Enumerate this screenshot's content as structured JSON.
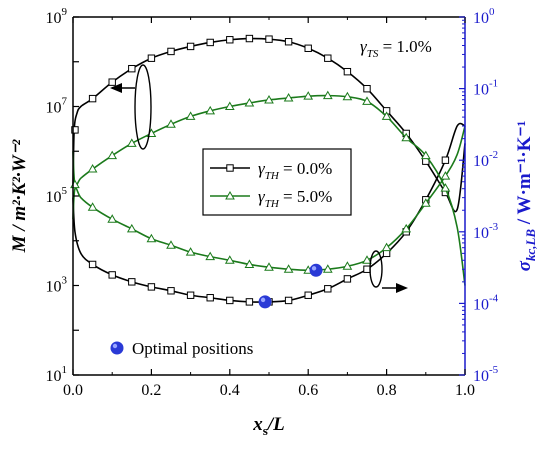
{
  "chart_data": {
    "type": "line",
    "x_axis": {
      "label_main": "x",
      "label_sub": "s",
      "label_rest": "/L",
      "range": [
        0.0,
        1.0
      ],
      "ticks": [
        0.0,
        0.2,
        0.4,
        0.6,
        0.8,
        1.0
      ],
      "tick_labels": [
        "0.0",
        "0.2",
        "0.4",
        "0.6",
        "0.8",
        "1.0"
      ]
    },
    "y_left": {
      "label": "M / m²·K²·W⁻²",
      "scale": "log",
      "range": [
        10,
        1000000000
      ],
      "tick_labels": [
        {
          "base": "10",
          "exp": "1",
          "value": 10
        },
        {
          "base": "10",
          "exp": "3",
          "value": 1000
        },
        {
          "base": "10",
          "exp": "5",
          "value": 100000
        },
        {
          "base": "10",
          "exp": "7",
          "value": 10000000
        },
        {
          "base": "10",
          "exp": "9",
          "value": 1000000000
        }
      ]
    },
    "y_right": {
      "label_main": "σ",
      "label_sub": "kc,LB",
      "label_rest": " / W·m⁻¹·K⁻¹",
      "color": "#1a1acc",
      "scale": "log",
      "range": [
        1e-05,
        1
      ],
      "tick_labels": [
        {
          "base": "10",
          "exp": "-5",
          "value": 1e-05
        },
        {
          "base": "10",
          "exp": "-4",
          "value": 0.0001
        },
        {
          "base": "10",
          "exp": "-3",
          "value": 0.001
        },
        {
          "base": "10",
          "exp": "-2",
          "value": 0.01
        },
        {
          "base": "10",
          "exp": "-1",
          "value": 0.1
        },
        {
          "base": "10",
          "exp": "0",
          "value": 1
        }
      ]
    },
    "annotation_gamma_ts": {
      "symbol": "γ",
      "sub": "TS",
      "text": " = 1.0%"
    },
    "series": [
      {
        "name_symbol": "γ",
        "name_sub": "TH",
        "name_text": " = 0.0%",
        "color": "#000000",
        "marker": "square",
        "M": {
          "x": [
            0.0,
            0.003,
            0.01,
            0.02,
            0.05,
            0.1,
            0.15,
            0.2,
            0.25,
            0.3,
            0.35,
            0.4,
            0.45,
            0.5,
            0.55,
            0.6,
            0.65,
            0.7,
            0.75,
            0.8,
            0.85,
            0.9,
            0.95,
            0.98,
            1.0
          ],
          "y": [
            150000,
            3000000,
            7000000,
            10000000,
            15000000,
            35000000,
            70000000,
            120000000,
            170000000,
            220000000,
            270000000,
            310000000,
            330000000,
            320000000,
            280000000,
            200000000,
            120000000,
            60000000,
            25000000,
            8000000,
            2500000,
            600000,
            120000,
            50000,
            1500000
          ]
        },
        "sigma": {
          "x": [
            0.0,
            0.005,
            0.02,
            0.05,
            0.1,
            0.15,
            0.2,
            0.25,
            0.3,
            0.35,
            0.4,
            0.45,
            0.5,
            0.55,
            0.6,
            0.65,
            0.7,
            0.75,
            0.8,
            0.85,
            0.9,
            0.95,
            0.98,
            1.0
          ],
          "y": [
            0.003,
            0.001,
            0.0005,
            0.00035,
            0.00025,
            0.0002,
            0.00017,
            0.00015,
            0.00013,
            0.00012,
            0.00011,
            0.000105,
            0.000105,
            0.00011,
            0.00013,
            0.00016,
            0.00022,
            0.0003,
            0.0005,
            0.001,
            0.0028,
            0.01,
            0.03,
            0.03
          ]
        }
      },
      {
        "name_symbol": "γ",
        "name_sub": "TH",
        "name_text": " = 5.0%",
        "color": "#1b7a1b",
        "marker": "triangle",
        "M": {
          "x": [
            0.0,
            0.005,
            0.02,
            0.05,
            0.1,
            0.15,
            0.2,
            0.25,
            0.3,
            0.35,
            0.4,
            0.45,
            0.5,
            0.55,
            0.6,
            0.65,
            0.7,
            0.75,
            0.8,
            0.85,
            0.9,
            0.95,
            0.98,
            1.0
          ],
          "y": [
            1000000,
            180000,
            250000,
            400000,
            800000,
            1500000,
            2500000,
            4000000,
            6000000,
            8000000,
            10000000,
            12000000,
            14000000,
            15500000,
            17000000,
            17500000,
            16500000,
            13000000,
            6000000,
            2000000,
            800000,
            150000,
            20000,
            1000
          ]
        },
        "sigma": {
          "x": [
            0.0,
            0.005,
            0.02,
            0.05,
            0.1,
            0.15,
            0.2,
            0.25,
            0.3,
            0.35,
            0.4,
            0.45,
            0.5,
            0.55,
            0.6,
            0.65,
            0.7,
            0.75,
            0.8,
            0.85,
            0.9,
            0.95,
            0.98,
            1.0
          ],
          "y": [
            0.0015,
            0.004,
            0.003,
            0.0022,
            0.0015,
            0.0011,
            0.0008,
            0.00065,
            0.00052,
            0.00045,
            0.0004,
            0.00035,
            0.00032,
            0.0003,
            0.00029,
            0.0003,
            0.00033,
            0.0004,
            0.0006,
            0.0011,
            0.0025,
            0.006,
            0.012,
            0.03
          ]
        }
      }
    ],
    "optimal_points_label": "Optimal positions",
    "optimal_points": [
      {
        "x": 0.49,
        "sigma": 0.000105
      },
      {
        "x": 0.62,
        "sigma": 0.00029
      }
    ]
  }
}
